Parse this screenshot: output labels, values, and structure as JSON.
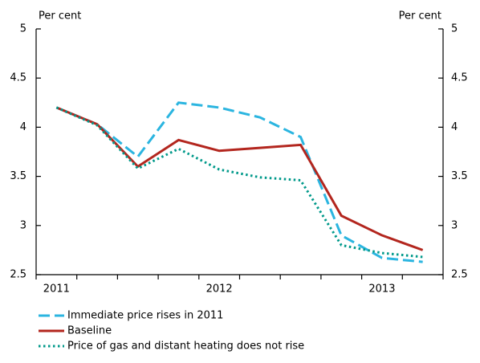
{
  "chart_data": {
    "type": "line",
    "ylabel": "Per cent",
    "y2label": "Per cent",
    "categories": [
      "2011",
      null,
      null,
      null,
      "2012",
      null,
      null,
      null,
      "2013",
      null
    ],
    "series": [
      {
        "name": "Immediate price rises in 2011",
        "color": "#2bb5e0",
        "dash": "dashed",
        "values": [
          4.2,
          4.03,
          3.7,
          4.25,
          4.2,
          4.1,
          3.9,
          2.9,
          2.67,
          2.63
        ]
      },
      {
        "name": "Baseline",
        "color": "#b3261e",
        "dash": "solid",
        "values": [
          4.2,
          4.03,
          3.6,
          3.87,
          3.76,
          3.79,
          3.82,
          3.1,
          2.9,
          2.75
        ]
      },
      {
        "name": "Price of gas and distant heating does not rise",
        "color": "#00998a",
        "dash": "dotted",
        "values": [
          4.2,
          4.02,
          3.58,
          3.78,
          3.57,
          3.49,
          3.46,
          2.8,
          2.72,
          2.68
        ]
      }
    ],
    "ylim": [
      2.5,
      5
    ],
    "yticks": [
      2.5,
      3,
      3.5,
      4,
      4.5,
      5
    ],
    "y2lim": [
      2.5,
      5
    ],
    "y2ticks": [
      2.5,
      3,
      3.5,
      4,
      4.5,
      5
    ],
    "grid": false
  }
}
